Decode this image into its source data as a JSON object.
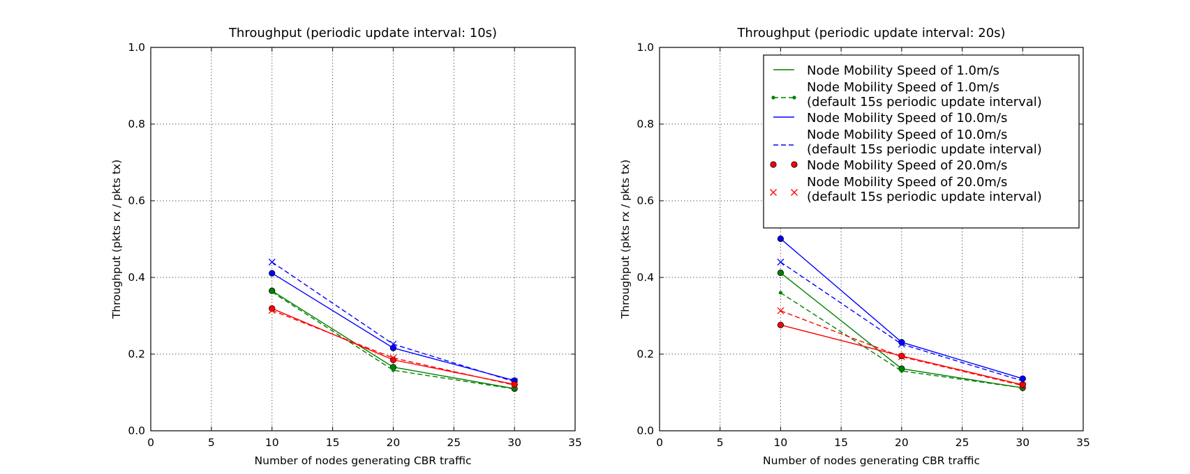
{
  "colors": {
    "green": "#008000",
    "blue": "#0000ff",
    "red": "#ff0000",
    "axis": "#000000"
  },
  "chart_data": [
    {
      "type": "line",
      "title": "Throughput (periodic update interval: 10s)",
      "xlabel": "Number of nodes generating CBR traffic",
      "ylabel": "Throughput (pkts rx / pkts tx)",
      "xlim": [
        0,
        35
      ],
      "ylim": [
        0.0,
        1.0
      ],
      "xticks": [
        "0",
        "5",
        "10",
        "15",
        "20",
        "25",
        "30",
        "35"
      ],
      "yticks": [
        "0.0",
        "0.2",
        "0.4",
        "0.6",
        "0.8",
        "1.0"
      ],
      "grid": true,
      "legend": null,
      "x": [
        10,
        20,
        30
      ],
      "series": [
        {
          "color": "green",
          "line": "solid",
          "marker": "circle",
          "values": [
            0.365,
            0.166,
            0.11
          ]
        },
        {
          "color": "green",
          "line": "dashed",
          "marker": "dot",
          "values": [
            0.362,
            0.158,
            0.109
          ]
        },
        {
          "color": "blue",
          "line": "solid",
          "marker": "circle",
          "values": [
            0.411,
            0.216,
            0.131
          ]
        },
        {
          "color": "blue",
          "line": "dashed",
          "marker": "x",
          "values": [
            0.44,
            0.226,
            0.128
          ]
        },
        {
          "color": "red",
          "line": "solid",
          "marker": "circle",
          "values": [
            0.319,
            0.185,
            0.121
          ]
        },
        {
          "color": "red",
          "line": "dashed",
          "marker": "x",
          "values": [
            0.314,
            0.19,
            0.119
          ]
        }
      ]
    },
    {
      "type": "line",
      "title": "Throughput (periodic update interval: 20s)",
      "xlabel": "Number of nodes generating CBR traffic",
      "ylabel": "Throughput (pkts rx / pkts tx)",
      "xlim": [
        0,
        35
      ],
      "ylim": [
        0.0,
        1.0
      ],
      "xticks": [
        "0",
        "5",
        "10",
        "15",
        "20",
        "25",
        "30",
        "35"
      ],
      "yticks": [
        "0.0",
        "0.2",
        "0.4",
        "0.6",
        "0.8",
        "1.0"
      ],
      "grid": true,
      "legend": "top-right",
      "x": [
        10,
        20,
        30
      ],
      "series": [
        {
          "name": "Node Mobility Speed of 1.0m/s",
          "color": "green",
          "line": "solid",
          "marker": "circle",
          "values": [
            0.412,
            0.162,
            0.112
          ]
        },
        {
          "name": "Node Mobility Speed of 1.0m/s\n(default 15s periodic update interval)",
          "color": "green",
          "line": "dashed",
          "marker": "dot",
          "values": [
            0.36,
            0.156,
            0.112
          ]
        },
        {
          "name": "Node Mobility Speed of 10.0m/s",
          "color": "blue",
          "line": "solid",
          "marker": "circle",
          "values": [
            0.501,
            0.231,
            0.136
          ]
        },
        {
          "name": "Node Mobility Speed of 10.0m/s\n(default 15s periodic update interval)",
          "color": "blue",
          "line": "dashed",
          "marker": "x",
          "values": [
            0.44,
            0.226,
            0.13
          ]
        },
        {
          "name": "Node Mobility Speed of 20.0m/s",
          "color": "red",
          "line": "solid",
          "marker": "circle",
          "values": [
            0.276,
            0.195,
            0.12
          ]
        },
        {
          "name": "Node Mobility Speed of 20.0m/s\n(default 15s periodic update interval)",
          "color": "red",
          "line": "dashed",
          "marker": "x",
          "values": [
            0.313,
            0.193,
            0.118
          ]
        }
      ]
    }
  ]
}
